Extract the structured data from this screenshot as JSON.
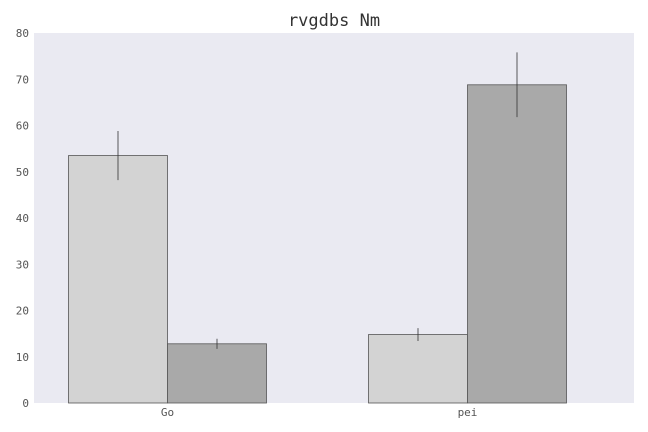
{
  "chart_data": {
    "type": "bar",
    "title": "rvgdbs Nm",
    "xlabel": "",
    "ylabel": "",
    "categories": [
      "Go",
      "pei"
    ],
    "ylim": [
      0,
      80
    ],
    "yticks": [
      0,
      10,
      20,
      30,
      40,
      50,
      60,
      70,
      80
    ],
    "grid": false,
    "series": [
      {
        "values": [
          53.5,
          14.8
        ],
        "errors": [
          5.3,
          1.4
        ],
        "color": "#d3d3d3"
      },
      {
        "values": [
          12.8,
          68.8
        ],
        "errors": [
          1.1,
          7.0
        ],
        "color": "#a9a9a9"
      }
    ],
    "colors": {
      "plot_background": "#eaeaf2",
      "bar_edge": "#555555",
      "error_bar": "#333333"
    }
  }
}
